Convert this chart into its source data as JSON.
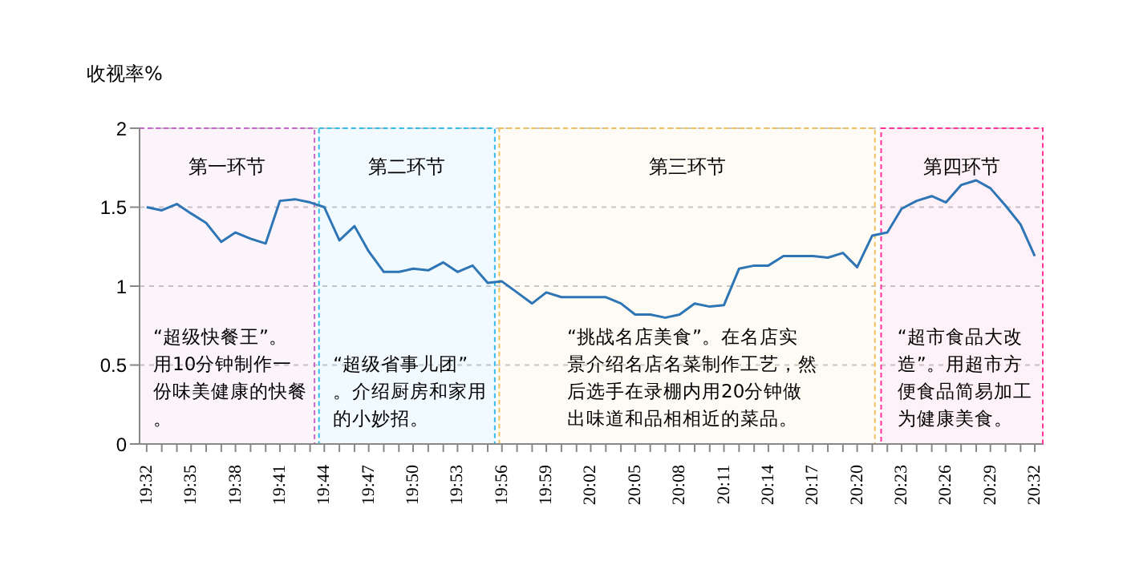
{
  "chart_data": {
    "type": "line",
    "ylabel": "收视率%",
    "x": [
      19.533,
      19.55,
      19.567,
      19.583,
      19.6,
      19.617,
      19.633,
      19.65,
      19.667,
      19.683,
      19.7,
      19.717,
      19.733,
      19.75,
      19.767,
      19.783,
      19.8,
      19.817,
      19.833,
      19.85,
      19.867,
      19.883,
      19.9,
      19.917,
      19.933,
      19.95,
      19.967,
      19.983,
      20,
      20.017,
      20.033,
      20.05,
      20.067,
      20.083,
      20.1,
      20.117,
      20.133,
      20.15,
      20.167,
      20.183,
      20.2,
      20.217,
      20.233,
      20.25,
      20.267,
      20.283,
      20.3,
      20.317,
      20.333,
      20.35,
      20.367,
      20.383,
      20.4,
      20.417,
      20.433,
      20.45,
      20.467,
      20.483,
      20.5,
      20.517,
      20.533
    ],
    "series": [
      {
        "color": "#2e75b6",
        "values": [
          1.5,
          1.48,
          1.52,
          1.46,
          1.4,
          1.28,
          1.34,
          1.3,
          1.27,
          1.54,
          1.55,
          1.53,
          1.5,
          1.29,
          1.38,
          1.22,
          1.09,
          1.09,
          1.11,
          1.1,
          1.15,
          1.09,
          1.13,
          1.02,
          1.03,
          0.96,
          0.89,
          0.96,
          0.93,
          0.93,
          0.93,
          0.93,
          0.89,
          0.82,
          0.82,
          0.8,
          0.82,
          0.89,
          0.87,
          0.88,
          1.11,
          1.13,
          1.13,
          1.19,
          1.19,
          1.19,
          1.18,
          1.21,
          1.12,
          1.32,
          1.34,
          1.49,
          1.54,
          1.57,
          1.53,
          1.64,
          1.67,
          1.62,
          1.51,
          1.39,
          1.19
        ]
      }
    ],
    "xlim": [
      19.525,
      20.542
    ],
    "xticks": [
      {
        "value": 19.533,
        "label": "19:32"
      },
      {
        "value": 19.55,
        "label": null
      },
      {
        "value": 19.567,
        "label": null
      },
      {
        "value": 19.583,
        "label": "19:35"
      },
      {
        "value": 19.6,
        "label": null
      },
      {
        "value": 19.617,
        "label": null
      },
      {
        "value": 19.633,
        "label": "19:38"
      },
      {
        "value": 19.65,
        "label": null
      },
      {
        "value": 19.667,
        "label": null
      },
      {
        "value": 19.683,
        "label": "19:41"
      },
      {
        "value": 19.7,
        "label": null
      },
      {
        "value": 19.717,
        "label": null
      },
      {
        "value": 19.733,
        "label": "19:44"
      },
      {
        "value": 19.75,
        "label": null
      },
      {
        "value": 19.767,
        "label": null
      },
      {
        "value": 19.783,
        "label": "19:47"
      },
      {
        "value": 19.8,
        "label": null
      },
      {
        "value": 19.817,
        "label": null
      },
      {
        "value": 19.833,
        "label": "19:50"
      },
      {
        "value": 19.85,
        "label": null
      },
      {
        "value": 19.867,
        "label": null
      },
      {
        "value": 19.883,
        "label": "19:53"
      },
      {
        "value": 19.9,
        "label": null
      },
      {
        "value": 19.917,
        "label": null
      },
      {
        "value": 19.933,
        "label": "19:56"
      },
      {
        "value": 19.95,
        "label": null
      },
      {
        "value": 19.967,
        "label": null
      },
      {
        "value": 19.983,
        "label": "19:59"
      },
      {
        "value": 20,
        "label": null
      },
      {
        "value": 20.017,
        "label": null
      },
      {
        "value": 20.033,
        "label": "20:02"
      },
      {
        "value": 20.05,
        "label": null
      },
      {
        "value": 20.067,
        "label": null
      },
      {
        "value": 20.083,
        "label": "20:05"
      },
      {
        "value": 20.1,
        "label": null
      },
      {
        "value": 20.117,
        "label": null
      },
      {
        "value": 20.133,
        "label": "20:08"
      },
      {
        "value": 20.15,
        "label": null
      },
      {
        "value": 20.167,
        "label": null
      },
      {
        "value": 20.183,
        "label": "20:11"
      },
      {
        "value": 20.2,
        "label": null
      },
      {
        "value": 20.217,
        "label": null
      },
      {
        "value": 20.233,
        "label": "20:14"
      },
      {
        "value": 20.25,
        "label": null
      },
      {
        "value": 20.267,
        "label": null
      },
      {
        "value": 20.283,
        "label": "20:17"
      },
      {
        "value": 20.3,
        "label": null
      },
      {
        "value": 20.317,
        "label": null
      },
      {
        "value": 20.333,
        "label": "20:20"
      },
      {
        "value": 20.35,
        "label": null
      },
      {
        "value": 20.367,
        "label": null
      },
      {
        "value": 20.383,
        "label": "20:23"
      },
      {
        "value": 20.4,
        "label": null
      },
      {
        "value": 20.417,
        "label": null
      },
      {
        "value": 20.433,
        "label": "20:26"
      },
      {
        "value": 20.45,
        "label": null
      },
      {
        "value": 20.467,
        "label": null
      },
      {
        "value": 20.483,
        "label": "20:29"
      },
      {
        "value": 20.5,
        "label": null
      },
      {
        "value": 20.517,
        "label": null
      },
      {
        "value": 20.533,
        "label": "20:32"
      }
    ],
    "ylim": [
      0,
      2
    ],
    "yticks": [
      0,
      0.5,
      1,
      1.5,
      2
    ],
    "grid": "y",
    "legend": false,
    "marker": "none",
    "line_style": "solid",
    "bands": [
      {
        "axis": "x",
        "from": 19.525,
        "to": 19.722,
        "label": "第一环节",
        "color": "#cc66cc"
      },
      {
        "axis": "x",
        "from": 19.727,
        "to": 19.925,
        "label": "第二环节",
        "color": "#33bbee"
      },
      {
        "axis": "x",
        "from": 19.93,
        "to": 20.353,
        "label": "第三环节",
        "color": "#f0c060"
      },
      {
        "axis": "x",
        "from": 20.36,
        "to": 20.542,
        "label": "第四环节",
        "color": "#ff3399"
      }
    ],
    "annotations": [
      "“超级快餐王”。用10分钟制作一份味美健康的快餐。",
      "“超级省事儿团”。介绍厨房和家用的小妙招。",
      "“挑战名店美食”。在名店实景介绍名店名菜制作工艺，然后选手在录棚内用20分钟做出味道和品相相近的菜品。",
      "“超市食品大改造”。用超市方便食品简易加工为健康美食。"
    ]
  }
}
